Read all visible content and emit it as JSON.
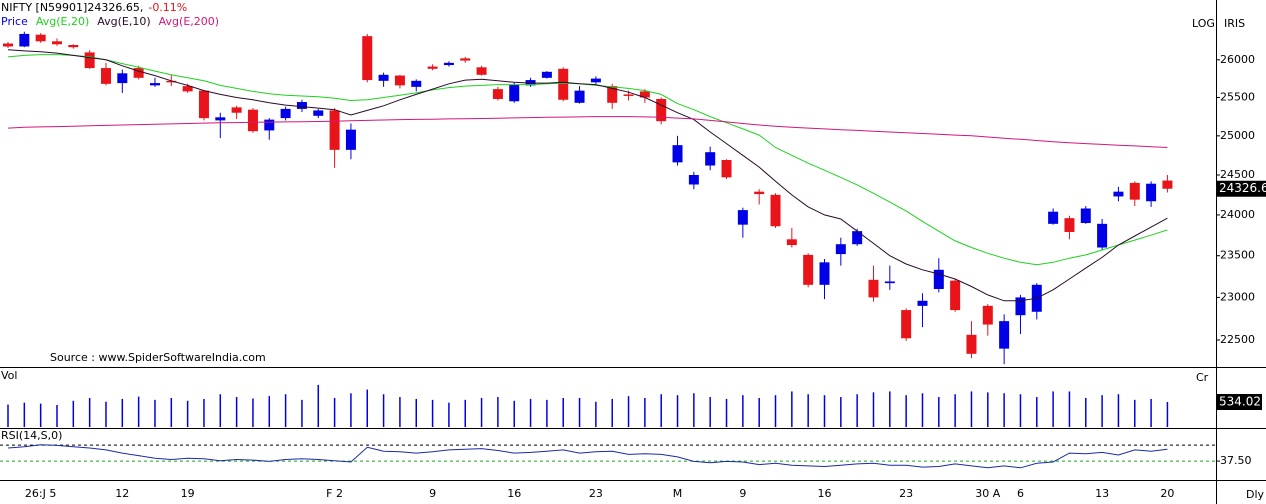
{
  "chart_data": [
    {
      "type": "candlestick",
      "title": "NIFTY [N59901]24326.65,",
      "change": "-0.11%",
      "scale_label": "LOG",
      "logo": "IRIS",
      "source": "Source : www.SpiderSoftwareIndia.com",
      "log_scale": true,
      "price_tag": "24326.6",
      "categories": [
        null,
        null,
        "26:J 5",
        null,
        null,
        null,
        null,
        "12",
        null,
        null,
        null,
        "19",
        null,
        null,
        null,
        null,
        null,
        null,
        null,
        null,
        "F 2",
        null,
        null,
        null,
        null,
        null,
        "9",
        null,
        null,
        null,
        null,
        "16",
        null,
        null,
        null,
        null,
        "23",
        null,
        null,
        null,
        null,
        "M",
        null,
        null,
        null,
        "9",
        null,
        null,
        null,
        null,
        "16",
        null,
        null,
        null,
        null,
        "23",
        null,
        null,
        null,
        null,
        "30 A",
        null,
        "6",
        null,
        null,
        null,
        null,
        "13",
        null,
        null,
        null,
        "20"
      ],
      "ylim": [
        22200,
        26650
      ],
      "yticks": [
        22500,
        23000,
        23500,
        24000,
        24500,
        25000,
        25500,
        26000
      ],
      "series": [
        {
          "name": "Price",
          "up_color": "#0000e6",
          "down_color": "#e8141a",
          "open": [
            26220,
            26180,
            26340,
            26250,
            26200,
            26100,
            25890,
            25690,
            25890,
            25660,
            25720,
            25650,
            25590,
            25200,
            25370,
            25340,
            25070,
            25230,
            25350,
            25260,
            25330,
            24820,
            26320,
            25720,
            25790,
            25640,
            25910,
            25930,
            26020,
            25900,
            25610,
            25450,
            25660,
            25760,
            25880,
            25430,
            25700,
            25650,
            25540,
            25580,
            25480,
            24660,
            24380,
            24620,
            24690,
            23880,
            24290,
            24250,
            23700,
            23510,
            23150,
            23520,
            23640,
            23210,
            23170,
            22850,
            22900,
            23100,
            23200,
            22560,
            22900,
            22400,
            22790,
            22830,
            23890,
            23960,
            23900,
            23600,
            24230,
            24400,
            24170,
            24430
          ],
          "high": [
            26240,
            26380,
            26360,
            26290,
            26210,
            26130,
            25960,
            25870,
            25920,
            25760,
            25800,
            25680,
            25600,
            25300,
            25390,
            25360,
            25230,
            25380,
            25470,
            25350,
            25360,
            25160,
            26350,
            25830,
            25800,
            25740,
            25940,
            25980,
            26040,
            25920,
            25640,
            25700,
            25760,
            25850,
            25900,
            25650,
            25780,
            25680,
            25590,
            25610,
            25500,
            25000,
            24540,
            24860,
            24700,
            24090,
            24320,
            24270,
            23840,
            23530,
            23460,
            23720,
            23830,
            23380,
            23380,
            22870,
            23050,
            23470,
            23220,
            22720,
            22920,
            22800,
            23030,
            23170,
            24080,
            23990,
            24110,
            23950,
            24350,
            24420,
            24420,
            24500
          ],
          "low": [
            26160,
            26170,
            26230,
            26190,
            26150,
            25880,
            25660,
            25560,
            25740,
            25640,
            25650,
            25560,
            25200,
            24970,
            25220,
            25040,
            24950,
            25200,
            25310,
            25230,
            24590,
            24700,
            25700,
            25640,
            25620,
            25580,
            25860,
            25910,
            25960,
            25790,
            25460,
            25430,
            25640,
            25750,
            25450,
            25420,
            25680,
            25350,
            25460,
            25430,
            25150,
            24620,
            24320,
            24560,
            24450,
            23720,
            24130,
            23840,
            23600,
            23120,
            22980,
            23380,
            23620,
            22950,
            23090,
            22490,
            22650,
            23060,
            22830,
            22290,
            22550,
            22220,
            22570,
            22740,
            23880,
            23700,
            23890,
            23570,
            24170,
            24110,
            24100,
            24280
          ],
          "close": [
            26180,
            26350,
            26250,
            26210,
            26170,
            25890,
            25680,
            25820,
            25760,
            25690,
            25700,
            25580,
            25230,
            25240,
            25300,
            25060,
            25210,
            25350,
            25440,
            25330,
            24820,
            25080,
            25730,
            25800,
            25660,
            25720,
            25880,
            25960,
            25990,
            25800,
            25480,
            25670,
            25730,
            25840,
            25470,
            25590,
            25750,
            25430,
            25520,
            25500,
            25190,
            24880,
            24500,
            24790,
            24470,
            24060,
            24260,
            23860,
            23630,
            23150,
            23420,
            23640,
            23800,
            23000,
            23190,
            22520,
            22960,
            23330,
            22850,
            22340,
            22680,
            22720,
            23000,
            23150,
            24040,
            23790,
            24080,
            23890,
            24290,
            24190,
            24390,
            24326.65
          ]
        },
        {
          "name": "Avg(E,20)",
          "color": "#1fd21f",
          "values": [
            26040,
            26060,
            26070,
            26070,
            26060,
            26040,
            26000,
            25950,
            25900,
            25850,
            25800,
            25760,
            25720,
            25660,
            25620,
            25580,
            25550,
            25530,
            25520,
            25510,
            25490,
            25460,
            25470,
            25500,
            25530,
            25560,
            25600,
            25630,
            25650,
            25660,
            25670,
            25670,
            25670,
            25680,
            25690,
            25680,
            25660,
            25640,
            25620,
            25590,
            25540,
            25420,
            25340,
            25250,
            25170,
            25090,
            25010,
            24850,
            24750,
            24650,
            24560,
            24470,
            24375,
            24270,
            24160,
            24050,
            23920,
            23800,
            23680,
            23600,
            23530,
            23470,
            23420,
            23390,
            23420,
            23470,
            23510,
            23570,
            23630,
            23690,
            23750,
            23815
          ]
        },
        {
          "name": "Avg(E,10)",
          "color": "#2a0a2a",
          "values": [
            26135,
            26120,
            26110,
            26090,
            26060,
            26030,
            26000,
            25920,
            25850,
            25790,
            25720,
            25660,
            25590,
            25540,
            25500,
            25470,
            25430,
            25400,
            25380,
            25360,
            25340,
            25270,
            25330,
            25390,
            25470,
            25540,
            25610,
            25680,
            25730,
            25740,
            25720,
            25700,
            25690,
            25690,
            25700,
            25680,
            25670,
            25620,
            25570,
            25500,
            25400,
            25300,
            25210,
            25050,
            24900,
            24750,
            24600,
            24420,
            24250,
            24100,
            24000,
            23950,
            23800,
            23650,
            23500,
            23400,
            23330,
            23280,
            23220,
            23130,
            23030,
            22960,
            22960,
            22990,
            23090,
            23220,
            23350,
            23480,
            23630,
            23740,
            23850,
            23960
          ]
        },
        {
          "name": "Avg(E,200)",
          "color": "#d2177a",
          "values": [
            25100,
            25110,
            25115,
            25120,
            25125,
            25130,
            25135,
            25140,
            25145,
            25150,
            25155,
            25160,
            25165,
            25170,
            25172,
            25175,
            25178,
            25180,
            25183,
            25186,
            25190,
            25195,
            25200,
            25205,
            25210,
            25213,
            25216,
            25220,
            25222,
            25225,
            25228,
            25232,
            25236,
            25240,
            25243,
            25246,
            25250,
            25250,
            25250,
            25245,
            25240,
            25230,
            25220,
            25200,
            25180,
            25160,
            25140,
            25125,
            25110,
            25100,
            25090,
            25080,
            25070,
            25060,
            25050,
            25040,
            25030,
            25020,
            25010,
            25000,
            24985,
            24970,
            24955,
            24940,
            24925,
            24910,
            24900,
            24890,
            24880,
            24870,
            24860,
            24850
          ]
        }
      ]
    },
    {
      "type": "bar",
      "title": "Vol",
      "unit": "Cr",
      "color": "#0000e6",
      "ylim": [
        0,
        940
      ],
      "values": [
        480,
        520,
        500,
        470,
        560,
        620,
        540,
        600,
        650,
        580,
        620,
        560,
        600,
        700,
        640,
        610,
        660,
        700,
        580,
        900,
        620,
        720,
        800,
        700,
        640,
        600,
        580,
        520,
        580,
        620,
        640,
        560,
        600,
        580,
        620,
        620,
        540,
        600,
        660,
        620,
        700,
        680,
        720,
        640,
        600,
        680,
        620,
        680,
        760,
        700,
        680,
        640,
        700,
        740,
        760,
        680,
        720,
        640,
        700,
        760,
        740,
        720,
        700,
        640,
        760,
        760,
        620,
        680,
        700,
        580,
        600,
        534.02
      ]
    },
    {
      "type": "line",
      "title": "RSI(14,S,0)",
      "period_label": "Dly",
      "color": "#1a2aa8",
      "ylim": [
        11,
        83
      ],
      "yticks": [
        {
          "value": 37.5,
          "label": "37.50"
        }
      ],
      "levels": [
        62.5,
        37.5
      ],
      "values": [
        58,
        60,
        63,
        62,
        60,
        58,
        55,
        50,
        46,
        42,
        40,
        42,
        41,
        38,
        40,
        39,
        37,
        40,
        41,
        40,
        38,
        36,
        59,
        53,
        52,
        50,
        52,
        55,
        56,
        57,
        54,
        50,
        51,
        53,
        55,
        50,
        52,
        53,
        48,
        49,
        48,
        44,
        37,
        35,
        37,
        36,
        32,
        34,
        31,
        30,
        29,
        31,
        33,
        34,
        31,
        31,
        28,
        29,
        33,
        30,
        27,
        30,
        27,
        34,
        36,
        50,
        49,
        51,
        47,
        55,
        53,
        56
      ]
    }
  ]
}
